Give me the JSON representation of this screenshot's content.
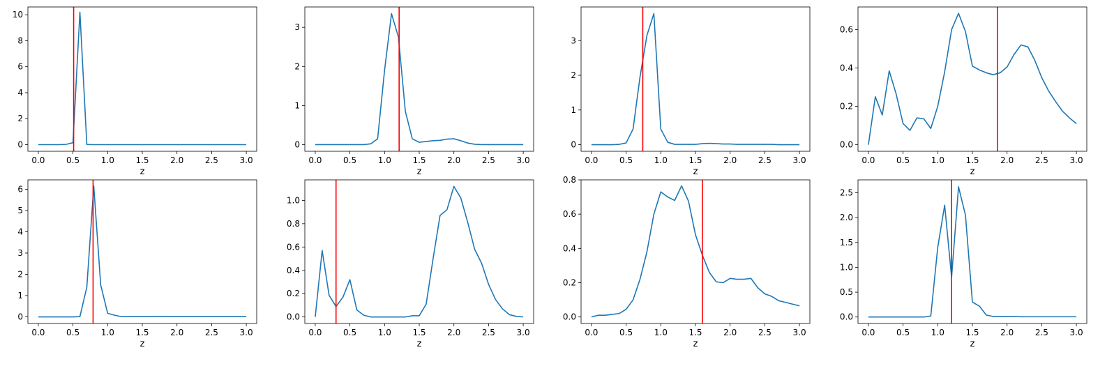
{
  "figure": {
    "line_color": "#1f77b4",
    "marker_color": "#ff0000",
    "frame_color": "#000000",
    "grid": false
  },
  "chart_data": [
    {
      "type": "line",
      "xlabel": "z",
      "xlim": [
        0,
        3
      ],
      "ylim": [
        -0.51,
        10.6
      ],
      "xticks": [
        "0.0",
        "0.5",
        "1.0",
        "1.5",
        "2.0",
        "2.5",
        "3.0"
      ],
      "yticks": [
        "0",
        "2",
        "4",
        "6",
        "8",
        "10"
      ],
      "x": [
        0.0,
        0.1,
        0.2,
        0.3,
        0.4,
        0.5,
        0.6,
        0.7,
        0.8,
        0.9,
        1.0,
        1.1,
        1.2,
        1.3,
        1.4,
        1.5,
        1.6,
        1.7,
        1.8,
        1.9,
        2.0,
        2.1,
        2.2,
        2.3,
        2.4,
        2.5,
        2.6,
        2.7,
        2.8,
        2.9,
        3.0
      ],
      "y": [
        0,
        0,
        0,
        0,
        0.02,
        0.15,
        10.2,
        0.01,
        0,
        0,
        0,
        0,
        0,
        0,
        0,
        0,
        0,
        0,
        0,
        0,
        0,
        0,
        0,
        0,
        0,
        0,
        0,
        0,
        0,
        0,
        0
      ],
      "marker_x": 0.51
    },
    {
      "type": "line",
      "xlabel": "z",
      "xlim": [
        0,
        3
      ],
      "ylim": [
        -0.17,
        3.52
      ],
      "xticks": [
        "0.0",
        "0.5",
        "1.0",
        "1.5",
        "2.0",
        "2.5",
        "3.0"
      ],
      "yticks": [
        "0",
        "1",
        "2",
        "3"
      ],
      "x": [
        0.0,
        0.1,
        0.2,
        0.3,
        0.4,
        0.5,
        0.6,
        0.7,
        0.8,
        0.9,
        1.0,
        1.1,
        1.2,
        1.3,
        1.4,
        1.5,
        1.6,
        1.7,
        1.8,
        1.9,
        2.0,
        2.1,
        2.2,
        2.3,
        2.4,
        2.5,
        2.6,
        2.7,
        2.8,
        2.9,
        3.0
      ],
      "y": [
        0,
        0,
        0,
        0,
        0,
        0,
        0,
        0,
        0.02,
        0.15,
        1.9,
        3.35,
        2.75,
        0.85,
        0.15,
        0.06,
        0.08,
        0.1,
        0.11,
        0.14,
        0.15,
        0.1,
        0.04,
        0.01,
        0,
        0,
        0,
        0,
        0,
        0,
        0
      ],
      "marker_x": 1.21
    },
    {
      "type": "line",
      "xlabel": "z",
      "xlim": [
        0,
        3
      ],
      "ylim": [
        -0.19,
        3.97
      ],
      "xticks": [
        "0.0",
        "0.5",
        "1.0",
        "1.5",
        "2.0",
        "2.5",
        "3.0"
      ],
      "yticks": [
        "0",
        "1",
        "2",
        "3"
      ],
      "x": [
        0.0,
        0.1,
        0.2,
        0.3,
        0.4,
        0.5,
        0.6,
        0.7,
        0.8,
        0.9,
        1.0,
        1.1,
        1.2,
        1.3,
        1.4,
        1.5,
        1.6,
        1.7,
        1.8,
        1.9,
        2.0,
        2.1,
        2.2,
        2.3,
        2.4,
        2.5,
        2.6,
        2.7,
        2.8,
        2.9,
        3.0
      ],
      "y": [
        0,
        0,
        0,
        0,
        0.01,
        0.05,
        0.45,
        1.95,
        3.15,
        3.78,
        0.45,
        0.07,
        0.01,
        0.01,
        0.01,
        0.01,
        0.03,
        0.04,
        0.03,
        0.02,
        0.02,
        0.01,
        0.01,
        0.01,
        0.01,
        0.01,
        0.01,
        0,
        0,
        0,
        0
      ],
      "marker_x": 0.74
    },
    {
      "type": "line",
      "xlabel": "z",
      "xlim": [
        0,
        3
      ],
      "ylim": [
        -0.034,
        0.718
      ],
      "xticks": [
        "0.0",
        "0.5",
        "1.0",
        "1.5",
        "2.0",
        "2.5",
        "3.0"
      ],
      "yticks": [
        "0.0",
        "0.2",
        "0.4",
        "0.6"
      ],
      "x": [
        0.0,
        0.1,
        0.2,
        0.3,
        0.4,
        0.5,
        0.6,
        0.7,
        0.8,
        0.9,
        1.0,
        1.1,
        1.2,
        1.3,
        1.4,
        1.5,
        1.6,
        1.7,
        1.8,
        1.9,
        2.0,
        2.1,
        2.2,
        2.3,
        2.4,
        2.5,
        2.6,
        2.7,
        2.8,
        2.9,
        3.0
      ],
      "y": [
        0,
        0.25,
        0.155,
        0.385,
        0.265,
        0.11,
        0.075,
        0.14,
        0.135,
        0.085,
        0.2,
        0.38,
        0.6,
        0.685,
        0.59,
        0.41,
        0.39,
        0.375,
        0.365,
        0.375,
        0.405,
        0.47,
        0.52,
        0.51,
        0.44,
        0.35,
        0.28,
        0.225,
        0.175,
        0.14,
        0.11
      ],
      "marker_x": 1.86
    },
    {
      "type": "line",
      "xlabel": "z",
      "xlim": [
        0,
        3
      ],
      "ylim": [
        -0.31,
        6.44
      ],
      "xticks": [
        "0.0",
        "0.5",
        "1.0",
        "1.5",
        "2.0",
        "2.5",
        "3.0"
      ],
      "yticks": [
        "0",
        "1",
        "2",
        "3",
        "4",
        "5",
        "6"
      ],
      "x": [
        0.0,
        0.1,
        0.2,
        0.3,
        0.4,
        0.5,
        0.6,
        0.7,
        0.8,
        0.9,
        1.0,
        1.1,
        1.2,
        1.3,
        1.4,
        1.5,
        1.6,
        1.7,
        1.8,
        1.9,
        2.0,
        2.1,
        2.2,
        2.3,
        2.4,
        2.5,
        2.6,
        2.7,
        2.8,
        2.9,
        3.0
      ],
      "y": [
        0,
        0,
        0,
        0,
        0,
        0,
        0.01,
        1.4,
        6.15,
        1.5,
        0.17,
        0.08,
        0.01,
        0.01,
        0.01,
        0.01,
        0.01,
        0.02,
        0.02,
        0.01,
        0.01,
        0.01,
        0.01,
        0.01,
        0.01,
        0.01,
        0.01,
        0.01,
        0.01,
        0.01,
        0.01
      ],
      "marker_x": 0.79
    },
    {
      "type": "line",
      "xlabel": "z",
      "xlim": [
        0,
        3
      ],
      "ylim": [
        -0.056,
        1.176
      ],
      "xticks": [
        "0.0",
        "0.5",
        "1.0",
        "1.5",
        "2.0",
        "2.5",
        "3.0"
      ],
      "yticks": [
        "0.0",
        "0.2",
        "0.4",
        "0.6",
        "0.8",
        "1.0"
      ],
      "x": [
        0.0,
        0.1,
        0.2,
        0.3,
        0.4,
        0.5,
        0.6,
        0.7,
        0.8,
        0.9,
        1.0,
        1.1,
        1.2,
        1.3,
        1.4,
        1.5,
        1.6,
        1.7,
        1.8,
        1.9,
        2.0,
        2.1,
        2.2,
        2.3,
        2.4,
        2.5,
        2.6,
        2.7,
        2.8,
        2.9,
        3.0
      ],
      "y": [
        0,
        0.57,
        0.185,
        0.09,
        0.17,
        0.32,
        0.06,
        0.015,
        0,
        0,
        0,
        0,
        0,
        0,
        0.01,
        0.01,
        0.11,
        0.5,
        0.87,
        0.92,
        1.12,
        1.02,
        0.81,
        0.58,
        0.46,
        0.28,
        0.15,
        0.07,
        0.02,
        0.005,
        0
      ],
      "marker_x": 0.3
    },
    {
      "type": "line",
      "xlabel": "z",
      "xlim": [
        0,
        3
      ],
      "ylim": [
        -0.038,
        0.8
      ],
      "xticks": [
        "0.0",
        "0.5",
        "1.0",
        "1.5",
        "2.0",
        "2.5",
        "3.0"
      ],
      "yticks": [
        "0.0",
        "0.2",
        "0.4",
        "0.6",
        "0.8"
      ],
      "x": [
        0.0,
        0.1,
        0.2,
        0.3,
        0.4,
        0.5,
        0.6,
        0.7,
        0.8,
        0.9,
        1.0,
        1.1,
        1.2,
        1.3,
        1.4,
        1.5,
        1.6,
        1.7,
        1.8,
        1.9,
        2.0,
        2.1,
        2.2,
        2.3,
        2.4,
        2.5,
        2.6,
        2.7,
        2.8,
        2.9,
        3.0
      ],
      "y": [
        0,
        0.01,
        0.01,
        0.015,
        0.02,
        0.045,
        0.1,
        0.22,
        0.38,
        0.6,
        0.73,
        0.7,
        0.68,
        0.765,
        0.675,
        0.48,
        0.36,
        0.26,
        0.205,
        0.2,
        0.225,
        0.22,
        0.22,
        0.225,
        0.17,
        0.135,
        0.12,
        0.095,
        0.085,
        0.075,
        0.065
      ],
      "marker_x": 1.6
    },
    {
      "type": "line",
      "xlabel": "z",
      "xlim": [
        0,
        3
      ],
      "ylim": [
        -0.13,
        2.76
      ],
      "xticks": [
        "0.0",
        "0.5",
        "1.0",
        "1.5",
        "2.0",
        "2.5",
        "3.0"
      ],
      "yticks": [
        "0.0",
        "0.5",
        "1.0",
        "1.5",
        "2.0",
        "2.5"
      ],
      "x": [
        0.0,
        0.1,
        0.2,
        0.3,
        0.4,
        0.5,
        0.6,
        0.7,
        0.8,
        0.9,
        1.0,
        1.1,
        1.2,
        1.3,
        1.4,
        1.5,
        1.6,
        1.7,
        1.8,
        1.9,
        2.0,
        2.1,
        2.2,
        2.3,
        2.4,
        2.5,
        2.6,
        2.7,
        2.8,
        2.9,
        3.0
      ],
      "y": [
        0,
        0,
        0,
        0,
        0,
        0,
        0,
        0,
        0,
        0.02,
        1.4,
        2.25,
        0.8,
        2.62,
        2.05,
        0.3,
        0.22,
        0.04,
        0.01,
        0.01,
        0.01,
        0.01,
        0.005,
        0.005,
        0.005,
        0.005,
        0.005,
        0.005,
        0.005,
        0.005,
        0.005
      ],
      "marker_x": 1.2
    }
  ]
}
